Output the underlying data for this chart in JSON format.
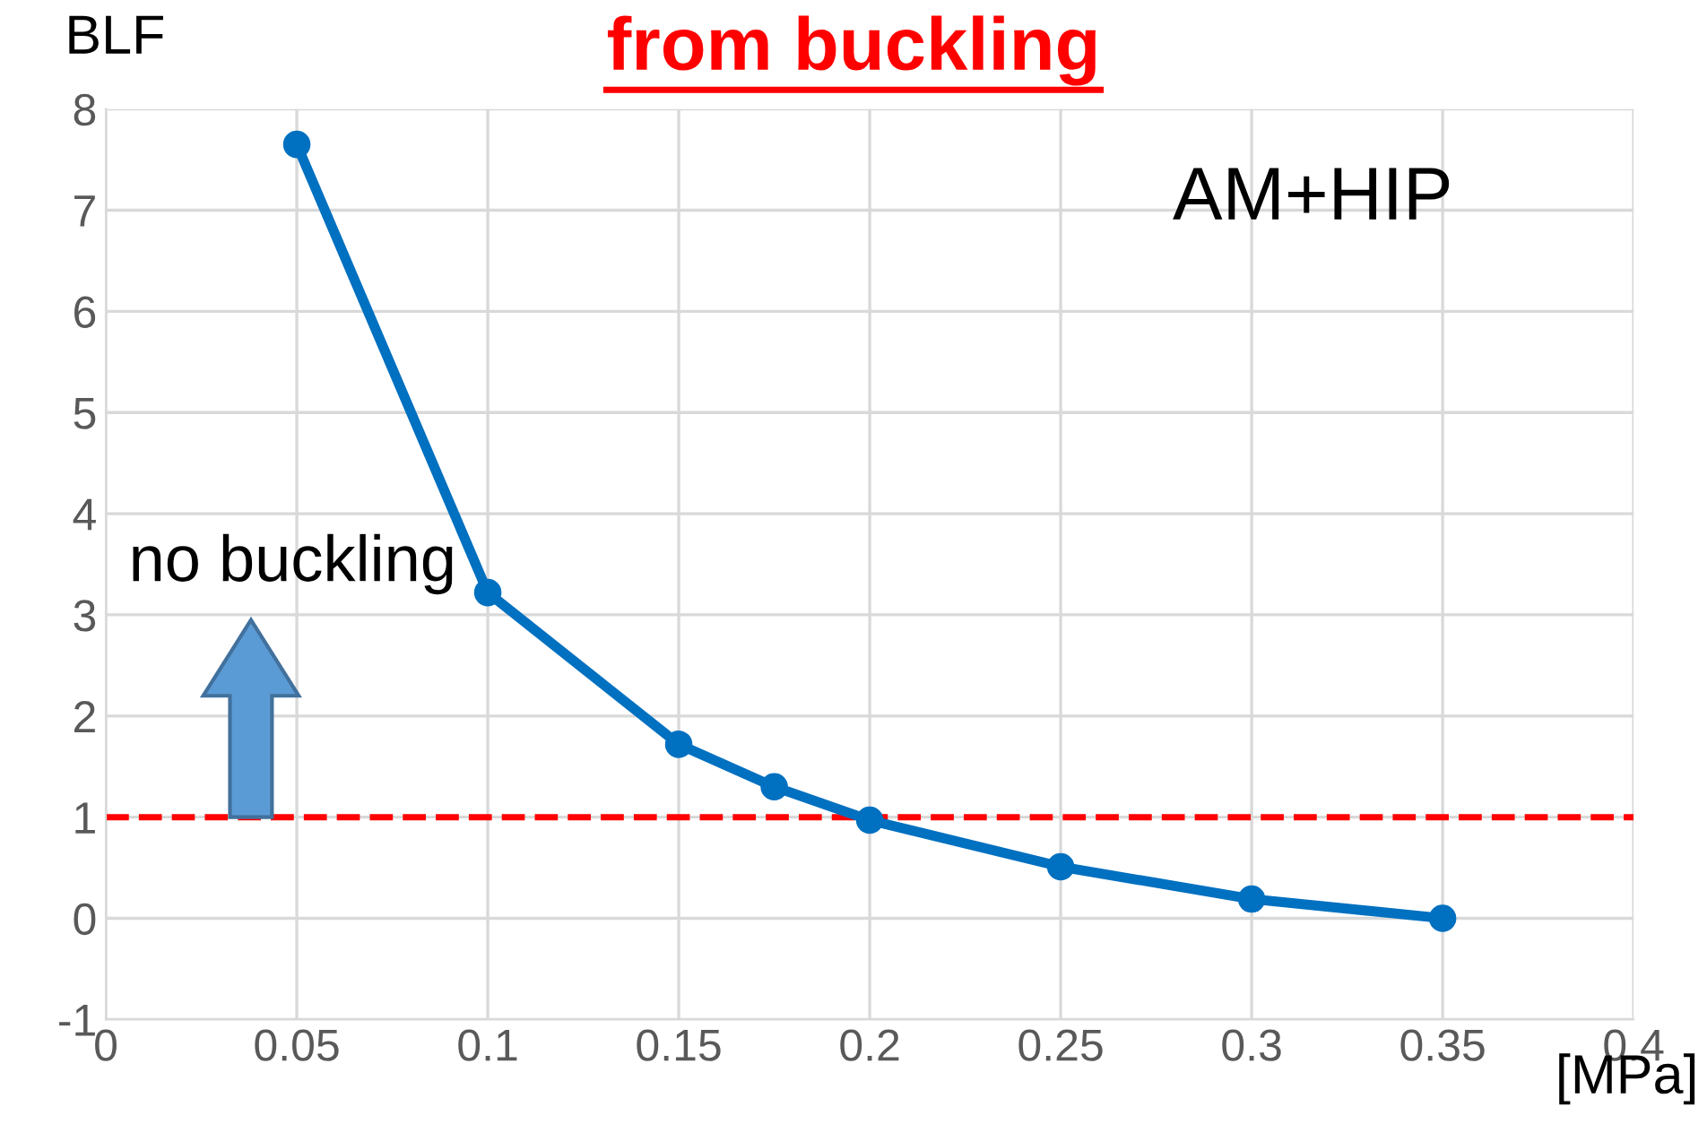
{
  "chart_data": {
    "type": "line",
    "title": "from buckling",
    "ylabel": "BLF",
    "xlabel": "[MPa]",
    "x": [
      0.05,
      0.1,
      0.15,
      0.175,
      0.2,
      0.25,
      0.3,
      0.35
    ],
    "series": [
      {
        "color": "#0070c0",
        "values": [
          7.65,
          3.22,
          1.72,
          1.3,
          0.97,
          0.51,
          0.19,
          0.0
        ]
      }
    ],
    "xlim": [
      0,
      0.4
    ],
    "xticks": [
      0,
      0.05,
      0.1,
      0.15,
      0.2,
      0.25,
      0.3,
      0.35,
      0.4
    ],
    "ylim": [
      -1,
      8
    ],
    "yticks": [
      -1,
      0,
      1,
      2,
      3,
      4,
      5,
      6,
      7,
      8
    ],
    "grid": true,
    "marker": "circle",
    "line_style": "solid",
    "ref_lines": [
      {
        "axis": "y",
        "value": 1,
        "color": "#ff0000",
        "line_style": "dashed"
      }
    ],
    "annotations": [
      "AM+HIP",
      "no buckling"
    ]
  }
}
